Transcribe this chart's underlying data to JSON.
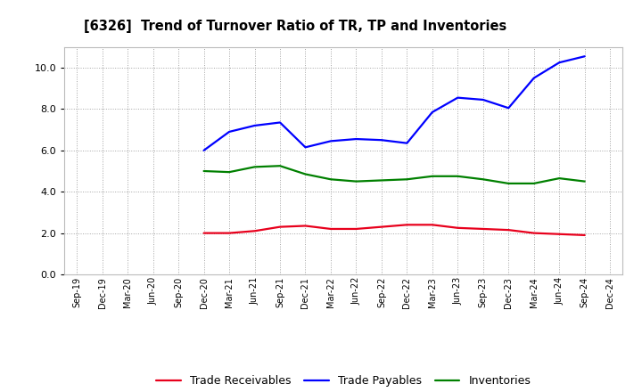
{
  "title": "[6326]  Trend of Turnover Ratio of TR, TP and Inventories",
  "x_labels": [
    "Sep-19",
    "Dec-19",
    "Mar-20",
    "Jun-20",
    "Sep-20",
    "Dec-20",
    "Mar-21",
    "Jun-21",
    "Sep-21",
    "Dec-21",
    "Mar-22",
    "Jun-22",
    "Sep-22",
    "Dec-22",
    "Mar-23",
    "Jun-23",
    "Sep-23",
    "Dec-23",
    "Mar-24",
    "Jun-24",
    "Sep-24",
    "Dec-24"
  ],
  "trade_receivables": [
    null,
    null,
    null,
    null,
    null,
    2.0,
    2.0,
    2.1,
    2.3,
    2.35,
    2.2,
    2.2,
    2.3,
    2.4,
    2.4,
    2.25,
    2.2,
    2.15,
    2.0,
    1.95,
    1.9,
    null
  ],
  "trade_payables": [
    null,
    null,
    null,
    null,
    null,
    6.0,
    6.9,
    7.2,
    7.35,
    6.15,
    6.45,
    6.55,
    6.5,
    6.35,
    7.85,
    8.55,
    8.45,
    8.05,
    9.5,
    10.25,
    10.55,
    null
  ],
  "inventories": [
    null,
    null,
    null,
    null,
    null,
    5.0,
    4.95,
    5.2,
    5.25,
    4.85,
    4.6,
    4.5,
    4.55,
    4.6,
    4.75,
    4.75,
    4.6,
    4.4,
    4.4,
    4.65,
    4.5,
    null
  ],
  "ylim": [
    0.0,
    11.0
  ],
  "yticks": [
    0.0,
    2.0,
    4.0,
    6.0,
    8.0,
    10.0
  ],
  "tr_color": "#e8001c",
  "tp_color": "#0000ff",
  "inv_color": "#008000",
  "legend_labels": [
    "Trade Receivables",
    "Trade Payables",
    "Inventories"
  ],
  "background_color": "#ffffff",
  "grid_color": "#999999"
}
